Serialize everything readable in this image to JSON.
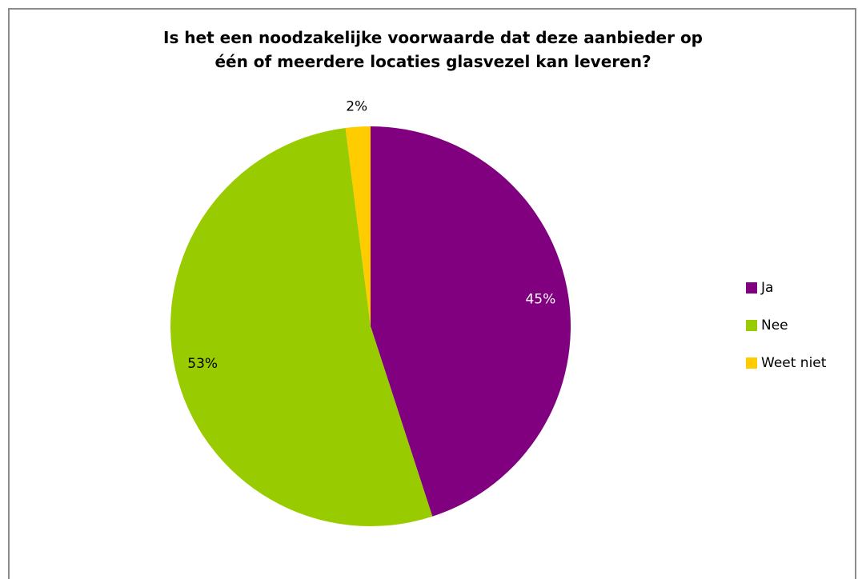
{
  "chart_data": {
    "type": "pie",
    "title_lines": [
      "Is het een noodzakelijke voorwaarde dat deze aanbieder op",
      "één of meerdere locaties glasvezel kan leveren?"
    ],
    "categories": [
      "Ja",
      "Nee",
      "Weet niet"
    ],
    "values": [
      45,
      53,
      2
    ],
    "labels": [
      "45%",
      "53%",
      "2%"
    ],
    "colors": [
      "#800080",
      "#99cc00",
      "#ffcc00"
    ],
    "label_colors": [
      "#ffffff",
      "#000000",
      "#000000"
    ],
    "legend_placement": "right"
  }
}
